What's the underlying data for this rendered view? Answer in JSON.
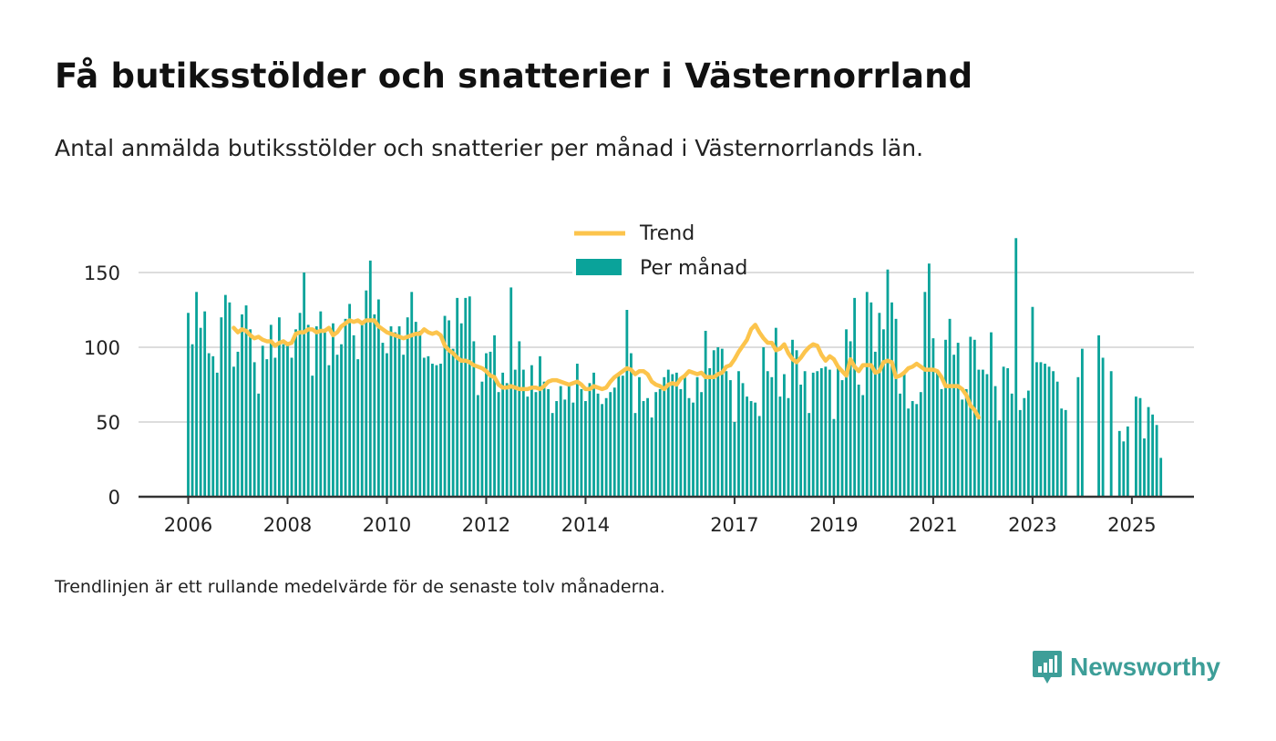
{
  "header": {
    "title": "Få butiksstölder och snatterier i Västernorrland",
    "subtitle": "Antal anmälda butiksstölder och snatterier per månad i Västernorrlands län."
  },
  "footnote": "Trendlinjen är ett rullande medelvärde för de senaste tolv månaderna.",
  "brand": {
    "name": "Newsworthy",
    "icon": "newsworthy-logo-icon",
    "color": "#3d9e98"
  },
  "colors": {
    "bars": "#0aa39a",
    "trend": "#fcc44c",
    "grid": "#dddddd",
    "axis": "#333333"
  },
  "chart_data": {
    "type": "bar",
    "title": "Få butiksstölder och snatterier i Västernorrland",
    "subtitle": "Antal anmälda butiksstölder och snatterier per månad i Västernorrlands län.",
    "xlabel": "",
    "ylabel": "",
    "ylim": [
      0,
      175
    ],
    "xlim": [
      "2005-01",
      "2026-04"
    ],
    "x_ticks": [
      "2006",
      "2008",
      "2010",
      "2012",
      "2014",
      "2017",
      "2019",
      "2021",
      "2023",
      "2025"
    ],
    "y_ticks": [
      0,
      50,
      100,
      150
    ],
    "grid": "horizontal",
    "legend_position": "top-center",
    "legend": [
      "Trend",
      "Per månad"
    ],
    "months_start": "2006-01",
    "series": [
      {
        "name": "Per månad",
        "type": "bar",
        "values": [
          123,
          102,
          137,
          113,
          124,
          96,
          94,
          83,
          120,
          135,
          130,
          87,
          97,
          122,
          128,
          112,
          90,
          69,
          101,
          92,
          115,
          93,
          120,
          102,
          101,
          93,
          112,
          123,
          150,
          115,
          81,
          114,
          124,
          110,
          88,
          116,
          95,
          102,
          119,
          129,
          108,
          92,
          116,
          138,
          158,
          122,
          132,
          103,
          96,
          114,
          110,
          114,
          95,
          120,
          137,
          117,
          111,
          93,
          94,
          89,
          88,
          89,
          121,
          118,
          99,
          133,
          116,
          133,
          134,
          104,
          68,
          77,
          96,
          97,
          108,
          70,
          83,
          76,
          140,
          85,
          104,
          85,
          67,
          88,
          70,
          94,
          77,
          72,
          56,
          64,
          74,
          65,
          76,
          63,
          89,
          72,
          64,
          76,
          83,
          69,
          62,
          66,
          70,
          73,
          82,
          81,
          125,
          96,
          56,
          80,
          64,
          66,
          53,
          70,
          72,
          80,
          85,
          82,
          83,
          72,
          81,
          66,
          63,
          80,
          70,
          111,
          86,
          98,
          100,
          99,
          84,
          78,
          50,
          84,
          76,
          67,
          64,
          63,
          54,
          100,
          84,
          80,
          113,
          67,
          82,
          66,
          105,
          98,
          75,
          84,
          56,
          83,
          84,
          86,
          87,
          85,
          52,
          86,
          78,
          112,
          104,
          133,
          75,
          68,
          137,
          130,
          97,
          123,
          112,
          152,
          130,
          119,
          69,
          84,
          59,
          64,
          62,
          70,
          137,
          156,
          106,
          84,
          72,
          105,
          119,
          95,
          103,
          65,
          72,
          107,
          105,
          85,
          85,
          82,
          110,
          74,
          51,
          87,
          86,
          69,
          173,
          58,
          66,
          71,
          127,
          90,
          90,
          89,
          87,
          84,
          77,
          59,
          58,
          0,
          0,
          80,
          99,
          0,
          0,
          0,
          108,
          93,
          0,
          84,
          0,
          44,
          37,
          47,
          0,
          67,
          66,
          39,
          60,
          55,
          48,
          26
        ]
      },
      {
        "name": "Trend",
        "type": "line",
        "start": "2006-12",
        "values": [
          113,
          110,
          112,
          111,
          108,
          106,
          107,
          105,
          104,
          104,
          101,
          103,
          104,
          102,
          103,
          109,
          110,
          110,
          112,
          112,
          110,
          111,
          111,
          113,
          108,
          110,
          114,
          116,
          118,
          117,
          118,
          116,
          118,
          118,
          118,
          114,
          112,
          110,
          109,
          108,
          107,
          106,
          107,
          108,
          109,
          109,
          112,
          110,
          109,
          110,
          108,
          101,
          98,
          96,
          93,
          91,
          91,
          90,
          88,
          87,
          86,
          84,
          81,
          80,
          75,
          73,
          73,
          74,
          73,
          72,
          72,
          72,
          73,
          73,
          72,
          74,
          77,
          78,
          78,
          77,
          76,
          75,
          76,
          77,
          75,
          72,
          72,
          74,
          73,
          72,
          73,
          77,
          80,
          82,
          84,
          86,
          85,
          82,
          84,
          84,
          82,
          77,
          75,
          74,
          72,
          75,
          76,
          75,
          79,
          81,
          84,
          83,
          82,
          83,
          80,
          80,
          80,
          82,
          83,
          87,
          88,
          92,
          97,
          101,
          105,
          112,
          115,
          110,
          106,
          103,
          103,
          98,
          99,
          102,
          96,
          92,
          90,
          93,
          97,
          100,
          102,
          101,
          95,
          91,
          94,
          92,
          87,
          84,
          81,
          92,
          87,
          84,
          88,
          88,
          88,
          83,
          84,
          90,
          91,
          90,
          80,
          81,
          83,
          86,
          87,
          89,
          87,
          85,
          85,
          85,
          84,
          80,
          74,
          74,
          74,
          74,
          72,
          68,
          61,
          58,
          53
        ]
      }
    ]
  }
}
